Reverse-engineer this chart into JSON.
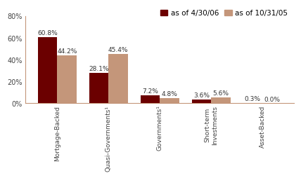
{
  "categories": [
    "Mortgage-Backed",
    "Quasi-Governments¹",
    "Governments¹",
    "Short-term\nInvestments",
    "Asset-Backed"
  ],
  "series1_label": "as of 4/30/06",
  "series2_label": "as of 10/31/05",
  "series1_values": [
    60.8,
    28.1,
    7.2,
    3.6,
    0.3
  ],
  "series2_values": [
    44.2,
    45.4,
    4.8,
    5.6,
    0.0
  ],
  "series1_color": "#6B0000",
  "series2_color": "#C4967A",
  "bar_width": 0.38,
  "ylim": [
    0,
    80
  ],
  "yticks": [
    0,
    20,
    40,
    60,
    80
  ],
  "ytick_labels": [
    "0%",
    "20%",
    "40%",
    "60%",
    "80%"
  ],
  "background_color": "#FFFFFF",
  "label_fontsize": 6.5,
  "tick_fontsize": 7.0,
  "legend_fontsize": 7.5,
  "spine_color": "#C4967A"
}
